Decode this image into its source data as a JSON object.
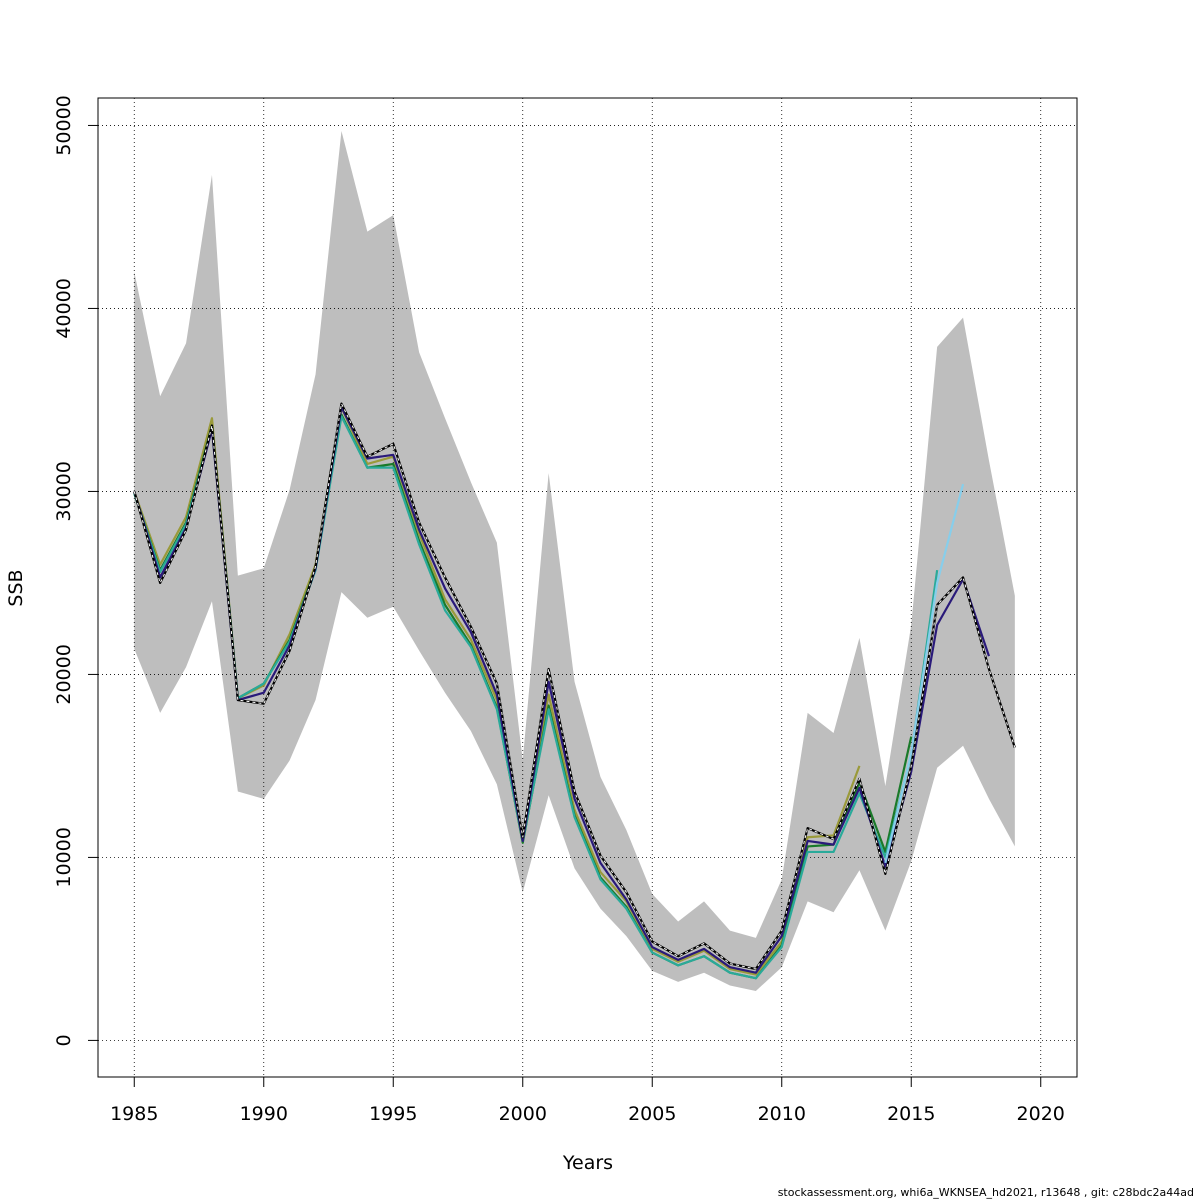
{
  "chart_data": {
    "type": "line",
    "xlabel": "Years",
    "ylabel": "SSB",
    "xlim": [
      1983.6,
      2021.4
    ],
    "ylim": [
      -2000,
      51500
    ],
    "xticks": [
      1985,
      1990,
      1995,
      2000,
      2005,
      2010,
      2015,
      2020
    ],
    "yticks": [
      0,
      10000,
      20000,
      30000,
      40000,
      50000
    ],
    "xtick_labels": [
      "1985",
      "1990",
      "1995",
      "2000",
      "2005",
      "2010",
      "2015",
      "2020"
    ],
    "ytick_labels": [
      "0",
      "10000",
      "20000",
      "30000",
      "40000",
      "50000"
    ],
    "grid": true,
    "colors": {
      "band": "#bebebe",
      "grid": "#000000",
      "base": "#000000",
      "olive": "#9a9a3a",
      "darkgreen": "#1a7a2a",
      "teal": "#2aaa9a",
      "navy": "#2a1a7a",
      "lightblue": "#87ceeb"
    },
    "band": {
      "x": [
        1985,
        1986,
        1987,
        1988,
        1989,
        1990,
        1991,
        1992,
        1993,
        1994,
        1995,
        1996,
        1997,
        1998,
        1999,
        2000,
        2001,
        2002,
        2003,
        2004,
        2005,
        2006,
        2007,
        2008,
        2009,
        2010,
        2011,
        2012,
        2013,
        2014,
        2015,
        2016,
        2017,
        2018,
        2019
      ],
      "upper": [
        42000,
        35200,
        38100,
        47300,
        25400,
        25800,
        30100,
        36400,
        49700,
        44200,
        45100,
        37600,
        34000,
        30500,
        27200,
        15300,
        31000,
        19600,
        14400,
        11500,
        8000,
        6500,
        7600,
        6000,
        5600,
        8800,
        17900,
        16800,
        22000,
        13900,
        22700,
        37900,
        39500,
        31700,
        24300
      ],
      "lower": [
        21400,
        17900,
        20400,
        24000,
        13600,
        13200,
        15300,
        18600,
        24500,
        23100,
        23700,
        21300,
        19000,
        16900,
        14000,
        8100,
        13400,
        9400,
        7200,
        5700,
        3800,
        3200,
        3700,
        3000,
        2700,
        4000,
        7600,
        7000,
        9300,
        6000,
        9800,
        14900,
        16100,
        13200,
        10600
      ]
    },
    "series": [
      {
        "color": "olive",
        "dash": false,
        "x": [
          1985,
          1986,
          1987,
          1988,
          1989,
          1990,
          1991,
          1992,
          1993,
          1994,
          1995,
          1996,
          1997,
          1998,
          1999,
          2000,
          2001,
          2002,
          2003,
          2004,
          2005,
          2006,
          2007,
          2008,
          2009,
          2010,
          2011,
          2012,
          2013
        ],
        "values": [
          30000,
          26000,
          28600,
          34000,
          18700,
          19400,
          22200,
          26000,
          34600,
          31500,
          31900,
          27700,
          24100,
          21900,
          18600,
          11100,
          18900,
          12600,
          9200,
          7600,
          5000,
          4300,
          4900,
          3900,
          3600,
          5400,
          11100,
          11200,
          15000
        ]
      },
      {
        "color": "darkgreen",
        "dash": false,
        "x": [
          1985,
          1986,
          1987,
          1988,
          1989,
          1990,
          1991,
          1992,
          1993,
          1994,
          1995,
          1996,
          1997,
          1998,
          1999,
          2000,
          2001,
          2002,
          2003,
          2004,
          2005,
          2006,
          2007,
          2008,
          2009,
          2010,
          2011,
          2012,
          2013,
          2014,
          2015
        ],
        "values": [
          29900,
          25700,
          28300,
          33600,
          18700,
          19500,
          21900,
          25800,
          34200,
          31300,
          31500,
          27300,
          23800,
          21600,
          18200,
          10800,
          18300,
          12300,
          8900,
          7300,
          4800,
          4100,
          4600,
          3700,
          3400,
          5200,
          10600,
          10700,
          14100,
          10300,
          16600
        ]
      },
      {
        "color": "teal",
        "dash": false,
        "x": [
          1985,
          1986,
          1987,
          1988,
          1989,
          1990,
          1991,
          1992,
          1993,
          1994,
          1995,
          1996,
          1997,
          1998,
          1999,
          2000,
          2001,
          2002,
          2003,
          2004,
          2005,
          2006,
          2007,
          2008,
          2009,
          2010,
          2011,
          2012,
          2013,
          2014,
          2015,
          2016
        ],
        "values": [
          29900,
          25600,
          28200,
          33500,
          18700,
          19500,
          21800,
          25700,
          34100,
          31300,
          31300,
          27100,
          23500,
          21500,
          18100,
          10900,
          18100,
          12200,
          8800,
          7200,
          4800,
          4100,
          4600,
          3700,
          3400,
          5100,
          10300,
          10300,
          13500,
          10000,
          15600,
          25700
        ]
      },
      {
        "color": "navy",
        "dash": false,
        "x": [
          1985,
          1986,
          1987,
          1988,
          1989,
          1990,
          1991,
          1992,
          1993,
          1994,
          1995,
          1996,
          1997,
          1998,
          1999,
          2000,
          2001,
          2002,
          2003,
          2004,
          2005,
          2006,
          2007,
          2008,
          2009,
          2010,
          2011,
          2012,
          2013,
          2014,
          2015,
          2016,
          2017,
          2018
        ],
        "values": [
          30000,
          25300,
          28000,
          33400,
          18600,
          19000,
          21600,
          25800,
          34600,
          31800,
          32000,
          27900,
          24700,
          22300,
          18900,
          10900,
          19600,
          13200,
          9700,
          7700,
          5100,
          4400,
          5000,
          4000,
          3700,
          5700,
          10900,
          10700,
          13800,
          9500,
          14700,
          22700,
          25200,
          21000
        ]
      },
      {
        "color": "lightblue",
        "dash": false,
        "x": [
          2014,
          2015,
          2016,
          2017
        ],
        "values": [
          9700,
          15700,
          25000,
          30400
        ]
      },
      {
        "color": "base",
        "dash": true,
        "x": [
          1985,
          1986,
          1987,
          1988,
          1989,
          1990,
          1991,
          1992,
          1993,
          1994,
          1995,
          1996,
          1997,
          1998,
          1999,
          2000,
          2001,
          2002,
          2003,
          2004,
          2005,
          2006,
          2007,
          2008,
          2009,
          2010,
          2011,
          2012,
          2013,
          2014,
          2015,
          2016,
          2017,
          2018,
          2019
        ],
        "values": [
          30000,
          25000,
          27900,
          33600,
          18600,
          18400,
          21300,
          25900,
          34800,
          31900,
          32600,
          28300,
          25300,
          22600,
          19500,
          11100,
          20300,
          13600,
          10100,
          8100,
          5400,
          4600,
          5300,
          4200,
          3900,
          6000,
          11600,
          11000,
          14300,
          9100,
          15000,
          23800,
          25300,
          20300,
          16000
        ]
      }
    ]
  },
  "caption": "stockassessment.org, whi6a_WKNSEA_hd2021, r13648 , git: c28bdc2a44ad"
}
